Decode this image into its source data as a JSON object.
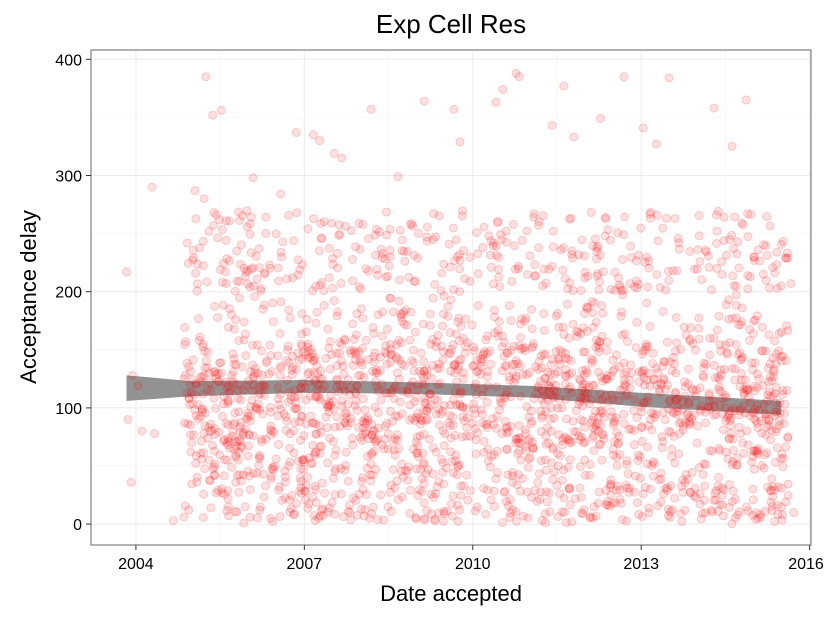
{
  "chart_data": {
    "type": "scatter",
    "title": "Exp Cell Res",
    "xlabel": "Date accepted",
    "ylabel": "Acceptance delay",
    "x_axis_type": "date",
    "xlim": [
      "2003-03-15",
      "2016-01-10"
    ],
    "ylim": [
      -18,
      408
    ],
    "x_ticks": [
      {
        "value": "2004-01-01",
        "label": "2004"
      },
      {
        "value": "2007-01-01",
        "label": "2007"
      },
      {
        "value": "2010-01-01",
        "label": "2010"
      },
      {
        "value": "2013-01-01",
        "label": "2013"
      },
      {
        "value": "2016-01-01",
        "label": "2016"
      }
    ],
    "y_ticks": [
      {
        "value": 0,
        "label": "0"
      },
      {
        "value": 100,
        "label": "100"
      },
      {
        "value": 200,
        "label": "200"
      },
      {
        "value": 300,
        "label": "300"
      },
      {
        "value": 400,
        "label": "400"
      }
    ],
    "grid": true,
    "legend": "none",
    "point_color": "#ff0000",
    "point_opacity": 0.12,
    "band_color": "#8c8c8c",
    "trend": {
      "x": [
        "2003-11-01",
        "2005-01-01",
        "2007-01-01",
        "2009-01-01",
        "2011-01-01",
        "2013-01-01",
        "2015-07-01"
      ],
      "upper": [
        128,
        123,
        124,
        122,
        119,
        113,
        106
      ],
      "lower": [
        106,
        110,
        113,
        112,
        109,
        101,
        94
      ]
    },
    "points": [
      {
        "x": "2003-11-01",
        "y": 217
      },
      {
        "x": "2003-11-10",
        "y": 90
      },
      {
        "x": "2003-12-01",
        "y": 36
      },
      {
        "x": "2003-12-10",
        "y": 128
      },
      {
        "x": "2004-01-15",
        "y": 119
      },
      {
        "x": "2004-02-10",
        "y": 80
      },
      {
        "x": "2004-04-15",
        "y": 290
      },
      {
        "x": "2004-05-01",
        "y": 78
      },
      {
        "x": "2004-09-01",
        "y": 3
      },
      {
        "x": "2004-12-01",
        "y": 242
      },
      {
        "x": "2005-04-01",
        "y": 385
      },
      {
        "x": "2005-05-15",
        "y": 352
      },
      {
        "x": "2005-07-10",
        "y": 356
      },
      {
        "x": "2005-03-20",
        "y": 280
      },
      {
        "x": "2005-01-20",
        "y": 287
      },
      {
        "x": "2006-02-01",
        "y": 298
      },
      {
        "x": "2006-08-01",
        "y": 284
      },
      {
        "x": "2006-11-10",
        "y": 337
      },
      {
        "x": "2007-03-01",
        "y": 335
      },
      {
        "x": "2007-04-10",
        "y": 330
      },
      {
        "x": "2007-07-15",
        "y": 319
      },
      {
        "x": "2007-09-01",
        "y": 315
      },
      {
        "x": "2008-03-10",
        "y": 357
      },
      {
        "x": "2008-09-01",
        "y": 299
      },
      {
        "x": "2009-02-20",
        "y": 364
      },
      {
        "x": "2009-09-01",
        "y": 357
      },
      {
        "x": "2009-10-10",
        "y": 329
      },
      {
        "x": "2010-06-01",
        "y": 363
      },
      {
        "x": "2010-07-15",
        "y": 374
      },
      {
        "x": "2010-10-10",
        "y": 388
      },
      {
        "x": "2010-10-30",
        "y": 385
      },
      {
        "x": "2011-06-01",
        "y": 343
      },
      {
        "x": "2011-08-15",
        "y": 377
      },
      {
        "x": "2011-10-20",
        "y": 333
      },
      {
        "x": "2012-04-10",
        "y": 349
      },
      {
        "x": "2012-09-10",
        "y": 385
      },
      {
        "x": "2013-01-15",
        "y": 341
      },
      {
        "x": "2013-04-10",
        "y": 327
      },
      {
        "x": "2013-07-01",
        "y": 384
      },
      {
        "x": "2014-04-20",
        "y": 358
      },
      {
        "x": "2014-08-15",
        "y": 325
      },
      {
        "x": "2014-11-15",
        "y": 365
      },
      {
        "x": "2015-06-01",
        "y": 234
      },
      {
        "x": "2015-09-01",
        "y": 207
      },
      {
        "x": "2015-09-20",
        "y": 10
      }
    ]
  }
}
